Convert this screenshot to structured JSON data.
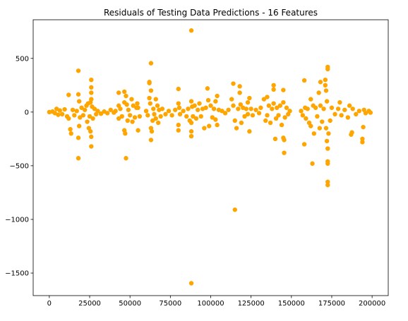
{
  "chart_data": {
    "type": "scatter",
    "title": "Residuals of Testing Data Predictions - 16 Features",
    "xlabel": "",
    "ylabel": "",
    "xlim": [
      -10000,
      210000
    ],
    "ylim": [
      -1710,
      860
    ],
    "x_ticks": [
      0,
      25000,
      50000,
      75000,
      100000,
      125000,
      150000,
      175000,
      200000
    ],
    "x_tick_labels": [
      "0",
      "25000",
      "50000",
      "75000",
      "100000",
      "125000",
      "150000",
      "175000",
      "200000"
    ],
    "y_ticks": [
      500,
      0,
      -500,
      -1000,
      -1500
    ],
    "y_tick_labels": [
      "500",
      "0",
      "−500",
      "−1000",
      "−1500"
    ],
    "grid": false,
    "legend": "none",
    "marker_color": "#FFA500",
    "points": [
      [
        0,
        0
      ],
      [
        2000,
        5
      ],
      [
        3500,
        -10
      ],
      [
        4500,
        30
      ],
      [
        5500,
        -25
      ],
      [
        6500,
        15
      ],
      [
        8000,
        -20
      ],
      [
        9500,
        25
      ],
      [
        11000,
        -40
      ],
      [
        12000,
        160
      ],
      [
        12000,
        -60
      ],
      [
        13000,
        -160
      ],
      [
        13500,
        -200
      ],
      [
        14500,
        20
      ],
      [
        15500,
        -30
      ],
      [
        17000,
        10
      ],
      [
        18000,
        385
      ],
      [
        18000,
        -430
      ],
      [
        18000,
        165
      ],
      [
        18000,
        -240
      ],
      [
        18500,
        100
      ],
      [
        18500,
        -130
      ],
      [
        19000,
        -50
      ],
      [
        20000,
        40
      ],
      [
        21000,
        -30
      ],
      [
        22000,
        20
      ],
      [
        23000,
        60
      ],
      [
        23500,
        -90
      ],
      [
        24000,
        80
      ],
      [
        24500,
        -150
      ],
      [
        25000,
        -40
      ],
      [
        25500,
        90
      ],
      [
        25500,
        -180
      ],
      [
        26000,
        300
      ],
      [
        26000,
        230
      ],
      [
        26000,
        180
      ],
      [
        26000,
        120
      ],
      [
        26000,
        -320
      ],
      [
        26000,
        -230
      ],
      [
        26500,
        50
      ],
      [
        27000,
        -60
      ],
      [
        28000,
        30
      ],
      [
        29000,
        -20
      ],
      [
        30000,
        10
      ],
      [
        32000,
        -15
      ],
      [
        34000,
        5
      ],
      [
        36000,
        -10
      ],
      [
        38000,
        20
      ],
      [
        40000,
        -5
      ],
      [
        41000,
        10
      ],
      [
        43000,
        180
      ],
      [
        43000,
        60
      ],
      [
        43000,
        -60
      ],
      [
        44000,
        30
      ],
      [
        45000,
        -40
      ],
      [
        46500,
        190
      ],
      [
        46500,
        90
      ],
      [
        46500,
        -170
      ],
      [
        47000,
        -200
      ],
      [
        47500,
        -430
      ],
      [
        47500,
        150
      ],
      [
        48000,
        70
      ],
      [
        48500,
        -80
      ],
      [
        49000,
        20
      ],
      [
        50000,
        -30
      ],
      [
        51000,
        120
      ],
      [
        51500,
        -90
      ],
      [
        52000,
        60
      ],
      [
        53000,
        -50
      ],
      [
        54000,
        40
      ],
      [
        54500,
        80
      ],
      [
        55000,
        -170
      ],
      [
        55000,
        40
      ],
      [
        56000,
        -40
      ],
      [
        60000,
        10
      ],
      [
        61000,
        -30
      ],
      [
        62000,
        270
      ],
      [
        62000,
        280
      ],
      [
        62000,
        130
      ],
      [
        62500,
        80
      ],
      [
        63000,
        455
      ],
      [
        63000,
        200
      ],
      [
        63000,
        -150
      ],
      [
        63000,
        -260
      ],
      [
        63500,
        -180
      ],
      [
        64000,
        -80
      ],
      [
        64500,
        30
      ],
      [
        65000,
        -20
      ],
      [
        66000,
        120
      ],
      [
        66000,
        -60
      ],
      [
        67000,
        60
      ],
      [
        67500,
        -100
      ],
      [
        68000,
        20
      ],
      [
        69000,
        -40
      ],
      [
        70000,
        30
      ],
      [
        72000,
        -20
      ],
      [
        74000,
        10
      ],
      [
        76000,
        -30
      ],
      [
        78000,
        20
      ],
      [
        80000,
        215
      ],
      [
        80000,
        80
      ],
      [
        80000,
        -170
      ],
      [
        80000,
        -120
      ],
      [
        80500,
        40
      ],
      [
        81000,
        -20
      ],
      [
        83000,
        10
      ],
      [
        85000,
        -40
      ],
      [
        86000,
        30
      ],
      [
        87000,
        -80
      ],
      [
        88000,
        760
      ],
      [
        88000,
        100
      ],
      [
        88000,
        -100
      ],
      [
        88000,
        -180
      ],
      [
        88000,
        -225
      ],
      [
        88000,
        -1595
      ],
      [
        88500,
        50
      ],
      [
        89000,
        -40
      ],
      [
        90000,
        60
      ],
      [
        91000,
        -60
      ],
      [
        92000,
        20
      ],
      [
        93000,
        80
      ],
      [
        94000,
        -40
      ],
      [
        95000,
        30
      ],
      [
        96000,
        -150
      ],
      [
        97000,
        40
      ],
      [
        98000,
        220
      ],
      [
        98500,
        110
      ],
      [
        99000,
        -130
      ],
      [
        100000,
        60
      ],
      [
        101000,
        -50
      ],
      [
        102000,
        30
      ],
      [
        103000,
        100
      ],
      [
        103000,
        -70
      ],
      [
        104000,
        150
      ],
      [
        104000,
        -120
      ],
      [
        105000,
        20
      ],
      [
        107000,
        10
      ],
      [
        109000,
        -10
      ],
      [
        111000,
        20
      ],
      [
        113000,
        120
      ],
      [
        114000,
        265
      ],
      [
        114000,
        60
      ],
      [
        115000,
        -80
      ],
      [
        115000,
        -910
      ],
      [
        116000,
        -150
      ],
      [
        117000,
        30
      ],
      [
        118000,
        240
      ],
      [
        118000,
        180
      ],
      [
        118500,
        70
      ],
      [
        119000,
        -100
      ],
      [
        120000,
        40
      ],
      [
        121000,
        -40
      ],
      [
        122000,
        30
      ],
      [
        123000,
        90
      ],
      [
        123000,
        -20
      ],
      [
        124000,
        130
      ],
      [
        124000,
        -180
      ],
      [
        125000,
        30
      ],
      [
        126000,
        -30
      ],
      [
        128000,
        20
      ],
      [
        130000,
        -10
      ],
      [
        131000,
        40
      ],
      [
        133000,
        120
      ],
      [
        134000,
        -80
      ],
      [
        135000,
        140
      ],
      [
        135000,
        -30
      ],
      [
        136000,
        60
      ],
      [
        137000,
        -100
      ],
      [
        138000,
        30
      ],
      [
        139000,
        250
      ],
      [
        139000,
        210
      ],
      [
        139000,
        80
      ],
      [
        140000,
        -250
      ],
      [
        140500,
        -60
      ],
      [
        141000,
        40
      ],
      [
        142000,
        -30
      ],
      [
        143000,
        60
      ],
      [
        144000,
        -120
      ],
      [
        145000,
        205
      ],
      [
        145000,
        90
      ],
      [
        145000,
        -240
      ],
      [
        145500,
        -260
      ],
      [
        145500,
        -380
      ],
      [
        146000,
        -50
      ],
      [
        147000,
        40
      ],
      [
        148000,
        -20
      ],
      [
        149000,
        10
      ],
      [
        156000,
        10
      ],
      [
        157000,
        -30
      ],
      [
        158000,
        295
      ],
      [
        158000,
        -300
      ],
      [
        158500,
        40
      ],
      [
        159000,
        -60
      ],
      [
        160000,
        30
      ],
      [
        161000,
        -100
      ],
      [
        162000,
        120
      ],
      [
        162000,
        -130
      ],
      [
        163000,
        -480
      ],
      [
        163500,
        60
      ],
      [
        164000,
        -200
      ],
      [
        165000,
        40
      ],
      [
        166000,
        -40
      ],
      [
        167000,
        180
      ],
      [
        167500,
        -150
      ],
      [
        168000,
        280
      ],
      [
        168000,
        60
      ],
      [
        169000,
        -90
      ],
      [
        170000,
        30
      ],
      [
        171000,
        300
      ],
      [
        171000,
        250
      ],
      [
        171500,
        200
      ],
      [
        171500,
        -150
      ],
      [
        172000,
        100
      ],
      [
        172000,
        -270
      ],
      [
        172500,
        420
      ],
      [
        172500,
        400
      ],
      [
        172500,
        -340
      ],
      [
        172500,
        -460
      ],
      [
        172500,
        -480
      ],
      [
        172500,
        -650
      ],
      [
        172500,
        -680
      ],
      [
        173000,
        -200
      ],
      [
        174000,
        -80
      ],
      [
        175000,
        40
      ],
      [
        177000,
        -20
      ],
      [
        179000,
        30
      ],
      [
        180000,
        90
      ],
      [
        181000,
        -30
      ],
      [
        183000,
        20
      ],
      [
        185000,
        -50
      ],
      [
        186000,
        60
      ],
      [
        187000,
        -210
      ],
      [
        187500,
        -190
      ],
      [
        188000,
        30
      ],
      [
        190000,
        -20
      ],
      [
        192000,
        10
      ],
      [
        194000,
        -280
      ],
      [
        194000,
        -250
      ],
      [
        194500,
        -140
      ],
      [
        195000,
        20
      ],
      [
        196000,
        -10
      ],
      [
        198000,
        10
      ],
      [
        199000,
        -5
      ]
    ]
  }
}
